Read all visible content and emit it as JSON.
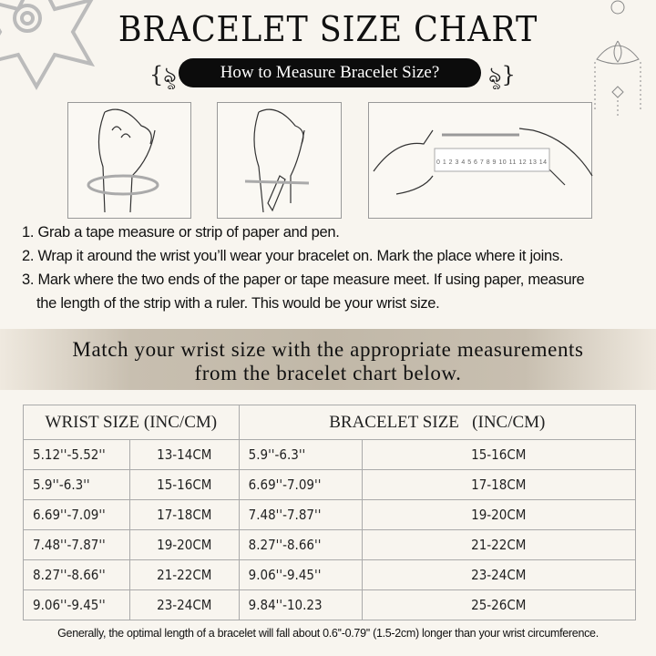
{
  "title": "BRACELET SIZE CHART",
  "subtitle": "How to Measure Bracelet Size?",
  "ruler_numbers": "0 1 2 3 4 5 6 7 8 9 10 11 12 13 14",
  "steps": [
    "1. Grab a tape measure or strip of paper and pen.",
    "2. Wrap it around the wrist you’ll wear your bracelet on. Mark the place where it joins.",
    "3. Mark where the two ends of the paper or tape measure meet. If using paper, measure",
    "the length of the strip with a ruler. This would be your wrist size."
  ],
  "band": {
    "line1": "Match your wrist size with the appropriate measurements",
    "line2": "from the bracelet chart below."
  },
  "table": {
    "headers": [
      "WRIST SIZE (INC/CM)",
      "BRACELET SIZE   (INC/CM)"
    ],
    "rows": [
      [
        "5.12''-5.52''",
        "13-14CM",
        "5.9''-6.3''",
        "15-16CM"
      ],
      [
        "5.9''-6.3''",
        "15-16CM",
        "6.69''-7.09''",
        "17-18CM"
      ],
      [
        "6.69''-7.09''",
        "17-18CM",
        "7.48''-7.87''",
        "19-20CM"
      ],
      [
        "7.48''-7.87''",
        "19-20CM",
        "8.27''-8.66''",
        "21-22CM"
      ],
      [
        "8.27''-8.66''",
        "21-22CM",
        "9.06''-9.45''",
        "23-24CM"
      ],
      [
        "9.06''-9.45''",
        "23-24CM",
        "9.84''-10.23",
        "25-26CM"
      ]
    ]
  },
  "note": "Generally, the optimal length of a bracelet will fall about 0.6''-0.79'' (1.5-2cm) longer than your wrist circumference."
}
